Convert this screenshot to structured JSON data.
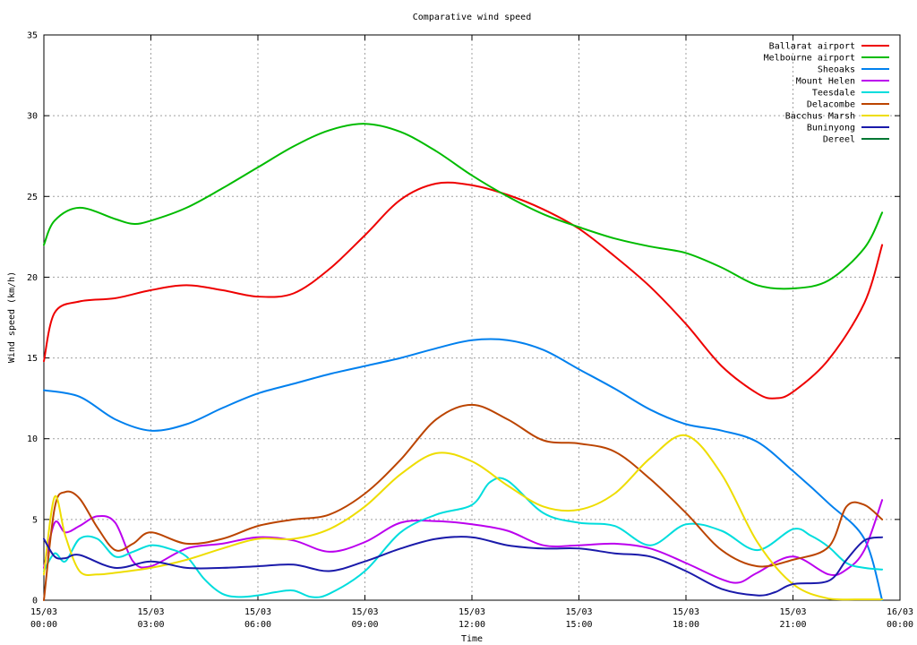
{
  "chart_data": {
    "type": "line",
    "title": "Comparative wind speed",
    "xlabel": "Time",
    "ylabel": "Wind speed (km/h)",
    "ylim": [
      0,
      35
    ],
    "xlim_hours": [
      0,
      24
    ],
    "yticks": [
      "0",
      "5",
      "10",
      "15",
      "20",
      "25",
      "30",
      "35"
    ],
    "xticks": [
      {
        "hour": 0,
        "date": "15/03",
        "time": "00:00"
      },
      {
        "hour": 3,
        "date": "15/03",
        "time": "03:00"
      },
      {
        "hour": 6,
        "date": "15/03",
        "time": "06:00"
      },
      {
        "hour": 9,
        "date": "15/03",
        "time": "09:00"
      },
      {
        "hour": 12,
        "date": "15/03",
        "time": "12:00"
      },
      {
        "hour": 15,
        "date": "15/03",
        "time": "15:00"
      },
      {
        "hour": 18,
        "date": "15/03",
        "time": "18:00"
      },
      {
        "hour": 21,
        "date": "15/03",
        "time": "21:00"
      },
      {
        "hour": 24,
        "date": "16/03",
        "time": "00:00"
      }
    ],
    "grid": true,
    "legend_position": "top-right",
    "series": [
      {
        "name": "Ballarat airport",
        "color": "#ee0000",
        "x": [
          0,
          0.3,
          1,
          2,
          3,
          4,
          5,
          6,
          7,
          8,
          9,
          10,
          11,
          12,
          13,
          14,
          15,
          16,
          17,
          18,
          19,
          20,
          20.5,
          21,
          22,
          23,
          23.5
        ],
        "y": [
          14.8,
          17.8,
          18.5,
          18.7,
          19.2,
          19.5,
          19.2,
          18.8,
          19.0,
          20.5,
          22.6,
          24.8,
          25.8,
          25.7,
          25.1,
          24.2,
          23.0,
          21.3,
          19.4,
          17.1,
          14.5,
          12.8,
          12.5,
          12.9,
          14.9,
          18.4,
          22.0
        ]
      },
      {
        "name": "Melbourne airport",
        "color": "#00bb00",
        "x": [
          0,
          0.3,
          1,
          2,
          2.5,
          3,
          4,
          5,
          6,
          7,
          8,
          9,
          10,
          11,
          12,
          13,
          14,
          15,
          16,
          17,
          18,
          19,
          20,
          21,
          22,
          23,
          23.5
        ],
        "y": [
          22.0,
          23.5,
          24.3,
          23.6,
          23.3,
          23.5,
          24.3,
          25.5,
          26.8,
          28.1,
          29.1,
          29.5,
          29.0,
          27.8,
          26.3,
          25.0,
          23.9,
          23.1,
          22.4,
          21.9,
          21.5,
          20.6,
          19.5,
          19.3,
          19.8,
          21.8,
          24.0
        ]
      },
      {
        "name": "Sheoaks",
        "color": "#0080ee",
        "x": [
          0,
          1,
          2,
          3,
          4,
          5,
          6,
          7,
          8,
          9,
          10,
          11,
          12,
          13,
          14,
          15,
          16,
          17,
          18,
          19,
          20,
          21,
          22,
          23,
          23.5
        ],
        "y": [
          13.0,
          12.6,
          11.2,
          10.5,
          10.9,
          11.9,
          12.8,
          13.4,
          14.0,
          14.5,
          15.0,
          15.6,
          16.1,
          16.1,
          15.5,
          14.3,
          13.1,
          11.8,
          10.9,
          10.5,
          9.8,
          8.0,
          6.0,
          3.8,
          0.0
        ]
      },
      {
        "name": "Mount Helen",
        "color": "#bb00ee",
        "x": [
          0,
          0.3,
          0.6,
          1,
          1.5,
          2,
          2.5,
          3,
          4,
          5,
          6,
          7,
          8,
          9,
          10,
          11,
          12,
          13,
          14,
          15,
          16,
          17,
          18,
          19,
          19.5,
          20,
          21,
          22,
          22.5,
          23,
          23.5
        ],
        "y": [
          2.0,
          4.8,
          4.2,
          4.6,
          5.2,
          4.8,
          2.4,
          2.1,
          3.2,
          3.5,
          3.9,
          3.7,
          3.0,
          3.6,
          4.8,
          4.9,
          4.7,
          4.3,
          3.4,
          3.4,
          3.5,
          3.2,
          2.3,
          1.3,
          1.1,
          1.7,
          2.7,
          1.6,
          1.9,
          3.1,
          6.2
        ]
      },
      {
        "name": "Teesdale",
        "color": "#00dddd",
        "x": [
          0,
          0.3,
          0.6,
          1,
          1.5,
          2,
          2.5,
          3,
          3.5,
          4,
          4.5,
          5,
          5.5,
          6,
          6.5,
          7,
          7.5,
          8,
          9,
          10,
          11,
          12,
          12.5,
          13,
          14,
          15,
          16,
          17,
          18,
          19,
          20,
          21,
          21.5,
          22,
          22.5,
          23,
          23.5
        ],
        "y": [
          1.8,
          2.9,
          2.4,
          3.8,
          3.8,
          2.7,
          3.0,
          3.4,
          3.2,
          2.7,
          1.3,
          0.4,
          0.2,
          0.3,
          0.5,
          0.6,
          0.2,
          0.4,
          1.8,
          4.2,
          5.3,
          5.9,
          7.3,
          7.4,
          5.4,
          4.8,
          4.6,
          3.4,
          4.7,
          4.3,
          3.1,
          4.4,
          4.0,
          3.3,
          2.3,
          2.0,
          1.9
        ]
      },
      {
        "name": "Delacombe",
        "color": "#bb4400",
        "x": [
          0,
          0.3,
          0.6,
          1,
          1.5,
          2,
          2.5,
          3,
          4,
          5,
          6,
          7,
          8,
          9,
          10,
          11,
          12,
          13,
          14,
          15,
          16,
          17,
          18,
          19,
          20,
          21,
          22,
          22.5,
          23,
          23.5
        ],
        "y": [
          0.0,
          5.7,
          6.7,
          6.3,
          4.5,
          3.1,
          3.5,
          4.2,
          3.5,
          3.8,
          4.6,
          5.0,
          5.3,
          6.6,
          8.7,
          11.2,
          12.1,
          11.2,
          9.9,
          9.7,
          9.2,
          7.5,
          5.4,
          3.1,
          2.1,
          2.5,
          3.3,
          5.8,
          5.9,
          5.0
        ]
      },
      {
        "name": "Bacchus Marsh",
        "color": "#eedd00",
        "x": [
          0,
          0.3,
          0.6,
          1,
          1.5,
          2,
          3,
          4,
          5,
          6,
          7,
          8,
          9,
          10,
          11,
          12,
          13,
          14,
          15,
          16,
          17,
          18,
          19,
          20,
          21,
          22,
          23,
          23.5
        ],
        "y": [
          1.6,
          6.4,
          4.0,
          1.8,
          1.6,
          1.7,
          2.0,
          2.5,
          3.2,
          3.8,
          3.8,
          4.4,
          5.8,
          7.8,
          9.1,
          8.6,
          7.1,
          5.8,
          5.6,
          6.6,
          8.8,
          10.2,
          7.8,
          3.6,
          1.0,
          0.1,
          0.05,
          0.05
        ]
      },
      {
        "name": "Buninyong",
        "color": "#1a1aaa",
        "x": [
          0,
          0.3,
          0.6,
          1,
          2,
          3,
          4,
          5,
          6,
          7,
          8,
          9,
          10,
          11,
          12,
          13,
          14,
          15,
          16,
          17,
          18,
          19,
          20,
          20.5,
          21,
          22,
          22.5,
          23,
          23.5
        ],
        "y": [
          3.8,
          2.7,
          2.6,
          2.8,
          2.0,
          2.4,
          2.0,
          2.0,
          2.1,
          2.2,
          1.8,
          2.4,
          3.2,
          3.8,
          3.9,
          3.4,
          3.2,
          3.2,
          2.9,
          2.7,
          1.8,
          0.7,
          0.3,
          0.5,
          1.0,
          1.2,
          2.5,
          3.7,
          3.9
        ]
      },
      {
        "name": "Dereel",
        "color": "#007733",
        "x": [],
        "y": []
      }
    ]
  }
}
